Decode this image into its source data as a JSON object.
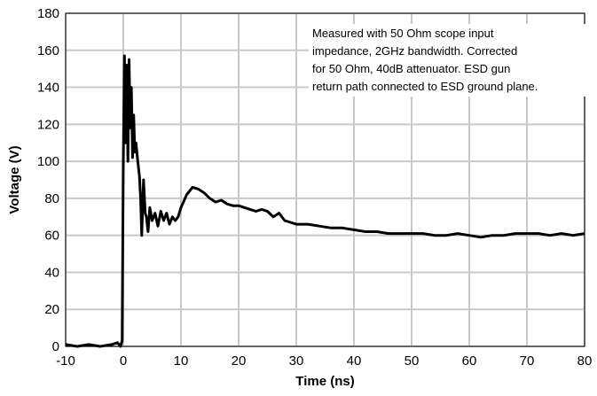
{
  "chart_data": {
    "type": "line",
    "title": "",
    "xlabel": "Time (ns)",
    "ylabel": "Voltage (V)",
    "xlim": [
      -10,
      80
    ],
    "ylim": [
      0,
      180
    ],
    "x_ticks": [
      -10,
      0,
      10,
      20,
      30,
      40,
      50,
      60,
      70,
      80
    ],
    "y_ticks": [
      0,
      20,
      40,
      60,
      80,
      100,
      120,
      140,
      160,
      180
    ],
    "grid": true,
    "line_color": "#000000",
    "annotation": [
      "Measured with 50 Ohm scope input",
      "impedance, 2GHz bandwidth. Corrected",
      "for 50 Ohm, 40dB attenuator. ESD gun",
      "return path connected to ESD ground plane."
    ],
    "series": [
      {
        "x": [
          -10,
          -8,
          -6,
          -4,
          -2,
          -1,
          -0.5,
          -0.2,
          0,
          0.2,
          0.4,
          0.6,
          0.8,
          1,
          1.2,
          1.4,
          1.6,
          1.8,
          2,
          2.2,
          2.5,
          2.8,
          3,
          3.2,
          3.5,
          3.8,
          4,
          4.3,
          4.6,
          5,
          5.5,
          6,
          6.5,
          7,
          7.5,
          8,
          8.5,
          9,
          9.5,
          10,
          11,
          12,
          13,
          14,
          15,
          16,
          17,
          18,
          19,
          20,
          21,
          22,
          23,
          24,
          25,
          26,
          27,
          28,
          29,
          30,
          32,
          34,
          36,
          38,
          40,
          42,
          44,
          46,
          48,
          50,
          52,
          54,
          56,
          58,
          60,
          62,
          64,
          66,
          68,
          70,
          72,
          74,
          76,
          78,
          80
        ],
        "y": [
          1,
          0,
          1,
          0,
          1,
          2,
          0,
          3,
          100,
          157,
          110,
          152,
          100,
          155,
          118,
          140,
          102,
          125,
          105,
          110,
          100,
          92,
          80,
          60,
          90,
          72,
          70,
          62,
          75,
          68,
          72,
          65,
          73,
          68,
          72,
          66,
          70,
          68,
          70,
          75,
          82,
          86,
          85,
          83,
          80,
          78,
          79,
          77,
          76,
          76,
          75,
          74,
          73,
          74,
          73,
          70,
          72,
          68,
          67,
          66,
          66,
          65,
          64,
          64,
          63,
          62,
          62,
          61,
          61,
          61,
          61,
          60,
          60,
          61,
          60,
          59,
          60,
          60,
          61,
          61,
          61,
          60,
          61,
          60,
          61
        ]
      }
    ]
  }
}
